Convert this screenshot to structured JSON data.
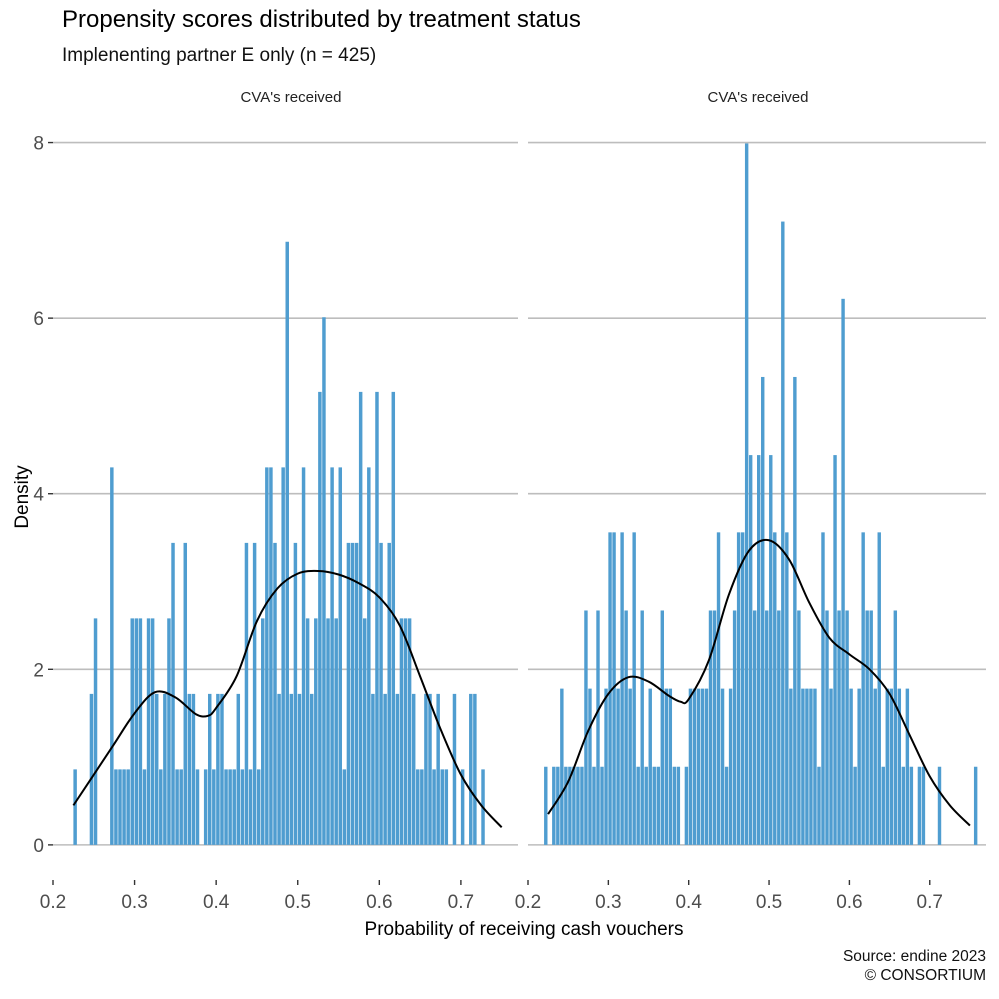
{
  "title": "Propensity scores distributed by treatment status",
  "subtitle": "Implenenting partner E only (n = 425)",
  "caption": {
    "line1": "Source: endine 2023",
    "line2": "© CONSORTIUM"
  },
  "colors": {
    "bars": "#4f9dd0",
    "density": "#000000",
    "grid": "#bdbdbd"
  },
  "chart_data": {
    "type": "bar",
    "description_units": "histogram of density vs probability, bins 0.005 wide",
    "xlabel": "Probability of receiving cash vouchers",
    "ylabel": "Density",
    "xlim": [
      0.2,
      0.77
    ],
    "ylim": [
      -0.4,
      8.2
    ],
    "x_ticks": [
      0.2,
      0.3,
      0.4,
      0.5,
      0.6,
      0.7
    ],
    "y_ticks": [
      0,
      2,
      4,
      6,
      8
    ],
    "x_tick_labels": [
      "0.2",
      "0.3",
      "0.4",
      "0.5",
      "0.6",
      "0.7"
    ],
    "y_tick_labels": [
      "0",
      "2",
      "4",
      "6",
      "8"
    ],
    "grid": "horizontal",
    "bin_width": 0.005,
    "panels": [
      {
        "strip": "CVA's received",
        "bins": [
          {
            "x": 0.2275,
            "y": 0.86
          },
          {
            "x": 0.2475,
            "y": 1.72
          },
          {
            "x": 0.2525,
            "y": 2.58
          },
          {
            "x": 0.2725,
            "y": 4.3
          },
          {
            "x": 0.2775,
            "y": 0.86
          },
          {
            "x": 0.2825,
            "y": 0.86
          },
          {
            "x": 0.2875,
            "y": 0.86
          },
          {
            "x": 0.2925,
            "y": 0.86
          },
          {
            "x": 0.2975,
            "y": 2.58
          },
          {
            "x": 0.3025,
            "y": 2.58
          },
          {
            "x": 0.3075,
            "y": 2.58
          },
          {
            "x": 0.3125,
            "y": 0.86
          },
          {
            "x": 0.3175,
            "y": 2.58
          },
          {
            "x": 0.3225,
            "y": 2.58
          },
          {
            "x": 0.3275,
            "y": 1.72
          },
          {
            "x": 0.3325,
            "y": 0.86
          },
          {
            "x": 0.3375,
            "y": 1.72
          },
          {
            "x": 0.3425,
            "y": 2.58
          },
          {
            "x": 0.3475,
            "y": 3.44
          },
          {
            "x": 0.3525,
            "y": 0.86
          },
          {
            "x": 0.3575,
            "y": 0.86
          },
          {
            "x": 0.3625,
            "y": 3.44
          },
          {
            "x": 0.3675,
            "y": 1.72
          },
          {
            "x": 0.3725,
            "y": 1.72
          },
          {
            "x": 0.3775,
            "y": 0.86
          },
          {
            "x": 0.3875,
            "y": 0.86
          },
          {
            "x": 0.3925,
            "y": 1.72
          },
          {
            "x": 0.3975,
            "y": 0.86
          },
          {
            "x": 0.4025,
            "y": 1.72
          },
          {
            "x": 0.4075,
            "y": 1.72
          },
          {
            "x": 0.4125,
            "y": 0.86
          },
          {
            "x": 0.4175,
            "y": 0.86
          },
          {
            "x": 0.4225,
            "y": 0.86
          },
          {
            "x": 0.4275,
            "y": 1.72
          },
          {
            "x": 0.4325,
            "y": 0.86
          },
          {
            "x": 0.4375,
            "y": 3.44
          },
          {
            "x": 0.4425,
            "y": 0.86
          },
          {
            "x": 0.4475,
            "y": 3.44
          },
          {
            "x": 0.4525,
            "y": 0.86
          },
          {
            "x": 0.4575,
            "y": 2.58
          },
          {
            "x": 0.4625,
            "y": 4.3
          },
          {
            "x": 0.4675,
            "y": 4.3
          },
          {
            "x": 0.4725,
            "y": 3.44
          },
          {
            "x": 0.4775,
            "y": 1.72
          },
          {
            "x": 0.4825,
            "y": 4.3
          },
          {
            "x": 0.4875,
            "y": 6.87
          },
          {
            "x": 0.4925,
            "y": 1.72
          },
          {
            "x": 0.4975,
            "y": 3.44
          },
          {
            "x": 0.5025,
            "y": 1.72
          },
          {
            "x": 0.5075,
            "y": 4.3
          },
          {
            "x": 0.5125,
            "y": 2.58
          },
          {
            "x": 0.5175,
            "y": 1.72
          },
          {
            "x": 0.5225,
            "y": 2.58
          },
          {
            "x": 0.5275,
            "y": 5.16
          },
          {
            "x": 0.5325,
            "y": 6.01
          },
          {
            "x": 0.5375,
            "y": 2.58
          },
          {
            "x": 0.5425,
            "y": 4.3
          },
          {
            "x": 0.5475,
            "y": 2.58
          },
          {
            "x": 0.5525,
            "y": 4.3
          },
          {
            "x": 0.5575,
            "y": 0.86
          },
          {
            "x": 0.5625,
            "y": 3.44
          },
          {
            "x": 0.5675,
            "y": 3.44
          },
          {
            "x": 0.5725,
            "y": 3.44
          },
          {
            "x": 0.5775,
            "y": 5.16
          },
          {
            "x": 0.5825,
            "y": 2.58
          },
          {
            "x": 0.5875,
            "y": 4.3
          },
          {
            "x": 0.5925,
            "y": 1.72
          },
          {
            "x": 0.5975,
            "y": 5.16
          },
          {
            "x": 0.6025,
            "y": 3.44
          },
          {
            "x": 0.6075,
            "y": 1.72
          },
          {
            "x": 0.6125,
            "y": 3.44
          },
          {
            "x": 0.6175,
            "y": 5.16
          },
          {
            "x": 0.6225,
            "y": 1.72
          },
          {
            "x": 0.6275,
            "y": 2.58
          },
          {
            "x": 0.6325,
            "y": 2.58
          },
          {
            "x": 0.6375,
            "y": 2.58
          },
          {
            "x": 0.6425,
            "y": 1.72
          },
          {
            "x": 0.6475,
            "y": 0.86
          },
          {
            "x": 0.6525,
            "y": 0.86
          },
          {
            "x": 0.6575,
            "y": 1.72
          },
          {
            "x": 0.6625,
            "y": 1.72
          },
          {
            "x": 0.6675,
            "y": 0.86
          },
          {
            "x": 0.6725,
            "y": 1.72
          },
          {
            "x": 0.6775,
            "y": 0.86
          },
          {
            "x": 0.6825,
            "y": 0.86
          },
          {
            "x": 0.6925,
            "y": 1.72
          },
          {
            "x": 0.7025,
            "y": 0.86
          },
          {
            "x": 0.7125,
            "y": 1.72
          },
          {
            "x": 0.7175,
            "y": 1.72
          },
          {
            "x": 0.7275,
            "y": 0.86
          }
        ],
        "density": [
          [
            0.225,
            0.45
          ],
          [
            0.25,
            0.8
          ],
          [
            0.275,
            1.15
          ],
          [
            0.3,
            1.5
          ],
          [
            0.325,
            1.74
          ],
          [
            0.35,
            1.68
          ],
          [
            0.375,
            1.49
          ],
          [
            0.39,
            1.47
          ],
          [
            0.4,
            1.56
          ],
          [
            0.425,
            1.92
          ],
          [
            0.45,
            2.55
          ],
          [
            0.475,
            2.92
          ],
          [
            0.5,
            3.09
          ],
          [
            0.525,
            3.12
          ],
          [
            0.55,
            3.08
          ],
          [
            0.575,
            2.98
          ],
          [
            0.6,
            2.82
          ],
          [
            0.625,
            2.5
          ],
          [
            0.65,
            1.92
          ],
          [
            0.675,
            1.32
          ],
          [
            0.7,
            0.8
          ],
          [
            0.725,
            0.45
          ],
          [
            0.75,
            0.2
          ]
        ]
      },
      {
        "strip": "CVA's received",
        "bins": [
          {
            "x": 0.2225,
            "y": 0.89
          },
          {
            "x": 0.2325,
            "y": 0.89
          },
          {
            "x": 0.2375,
            "y": 0.89
          },
          {
            "x": 0.2425,
            "y": 1.78
          },
          {
            "x": 0.2475,
            "y": 0.89
          },
          {
            "x": 0.2525,
            "y": 0.89
          },
          {
            "x": 0.2575,
            "y": 0.89
          },
          {
            "x": 0.2625,
            "y": 0.89
          },
          {
            "x": 0.2675,
            "y": 0.89
          },
          {
            "x": 0.2725,
            "y": 2.67
          },
          {
            "x": 0.2775,
            "y": 1.78
          },
          {
            "x": 0.2825,
            "y": 0.89
          },
          {
            "x": 0.2875,
            "y": 2.67
          },
          {
            "x": 0.2925,
            "y": 0.89
          },
          {
            "x": 0.2975,
            "y": 1.78
          },
          {
            "x": 0.3025,
            "y": 3.56
          },
          {
            "x": 0.3075,
            "y": 3.56
          },
          {
            "x": 0.3125,
            "y": 1.78
          },
          {
            "x": 0.3175,
            "y": 3.56
          },
          {
            "x": 0.3225,
            "y": 2.67
          },
          {
            "x": 0.3275,
            "y": 1.78
          },
          {
            "x": 0.3325,
            "y": 3.56
          },
          {
            "x": 0.3375,
            "y": 0.89
          },
          {
            "x": 0.3425,
            "y": 2.67
          },
          {
            "x": 0.3475,
            "y": 0.89
          },
          {
            "x": 0.3525,
            "y": 1.78
          },
          {
            "x": 0.3575,
            "y": 0.89
          },
          {
            "x": 0.3625,
            "y": 0.89
          },
          {
            "x": 0.3675,
            "y": 2.67
          },
          {
            "x": 0.3725,
            "y": 1.78
          },
          {
            "x": 0.3775,
            "y": 1.78
          },
          {
            "x": 0.3825,
            "y": 0.89
          },
          {
            "x": 0.3875,
            "y": 0.89
          },
          {
            "x": 0.3975,
            "y": 0.89
          },
          {
            "x": 0.4025,
            "y": 1.78
          },
          {
            "x": 0.4075,
            "y": 1.78
          },
          {
            "x": 0.4125,
            "y": 1.78
          },
          {
            "x": 0.4175,
            "y": 1.78
          },
          {
            "x": 0.4225,
            "y": 1.78
          },
          {
            "x": 0.4275,
            "y": 2.67
          },
          {
            "x": 0.4325,
            "y": 2.67
          },
          {
            "x": 0.4375,
            "y": 3.56
          },
          {
            "x": 0.4425,
            "y": 1.78
          },
          {
            "x": 0.4475,
            "y": 0.89
          },
          {
            "x": 0.4525,
            "y": 1.78
          },
          {
            "x": 0.4575,
            "y": 2.67
          },
          {
            "x": 0.4625,
            "y": 3.56
          },
          {
            "x": 0.4675,
            "y": 3.56
          },
          {
            "x": 0.4725,
            "y": 7.99
          },
          {
            "x": 0.4775,
            "y": 4.44
          },
          {
            "x": 0.4825,
            "y": 2.67
          },
          {
            "x": 0.4875,
            "y": 4.44
          },
          {
            "x": 0.4925,
            "y": 5.33
          },
          {
            "x": 0.4975,
            "y": 2.67
          },
          {
            "x": 0.5025,
            "y": 4.44
          },
          {
            "x": 0.5075,
            "y": 3.56
          },
          {
            "x": 0.5125,
            "y": 2.67
          },
          {
            "x": 0.5175,
            "y": 7.1
          },
          {
            "x": 0.5225,
            "y": 3.56
          },
          {
            "x": 0.5275,
            "y": 1.78
          },
          {
            "x": 0.5325,
            "y": 5.33
          },
          {
            "x": 0.5375,
            "y": 2.67
          },
          {
            "x": 0.5425,
            "y": 1.78
          },
          {
            "x": 0.5475,
            "y": 1.78
          },
          {
            "x": 0.5525,
            "y": 1.78
          },
          {
            "x": 0.5575,
            "y": 1.78
          },
          {
            "x": 0.5625,
            "y": 0.89
          },
          {
            "x": 0.5675,
            "y": 3.56
          },
          {
            "x": 0.5725,
            "y": 2.67
          },
          {
            "x": 0.5775,
            "y": 1.78
          },
          {
            "x": 0.5825,
            "y": 4.44
          },
          {
            "x": 0.5875,
            "y": 2.67
          },
          {
            "x": 0.5925,
            "y": 6.22
          },
          {
            "x": 0.5975,
            "y": 2.67
          },
          {
            "x": 0.6025,
            "y": 1.78
          },
          {
            "x": 0.6075,
            "y": 0.89
          },
          {
            "x": 0.6125,
            "y": 1.78
          },
          {
            "x": 0.6175,
            "y": 3.56
          },
          {
            "x": 0.6225,
            "y": 2.67
          },
          {
            "x": 0.6275,
            "y": 2.67
          },
          {
            "x": 0.6325,
            "y": 1.78
          },
          {
            "x": 0.6375,
            "y": 3.56
          },
          {
            "x": 0.6425,
            "y": 0.89
          },
          {
            "x": 0.6475,
            "y": 1.78
          },
          {
            "x": 0.6525,
            "y": 1.78
          },
          {
            "x": 0.6575,
            "y": 2.67
          },
          {
            "x": 0.6625,
            "y": 1.78
          },
          {
            "x": 0.6675,
            "y": 0.89
          },
          {
            "x": 0.6725,
            "y": 1.78
          },
          {
            "x": 0.6775,
            "y": 0.89
          },
          {
            "x": 0.6875,
            "y": 0.89
          },
          {
            "x": 0.6925,
            "y": 0.89
          },
          {
            "x": 0.7125,
            "y": 0.89
          },
          {
            "x": 0.7575,
            "y": 0.89
          }
        ],
        "density": [
          [
            0.225,
            0.35
          ],
          [
            0.25,
            0.72
          ],
          [
            0.275,
            1.3
          ],
          [
            0.3,
            1.72
          ],
          [
            0.325,
            1.91
          ],
          [
            0.35,
            1.86
          ],
          [
            0.375,
            1.7
          ],
          [
            0.39,
            1.63
          ],
          [
            0.4,
            1.66
          ],
          [
            0.425,
            2.1
          ],
          [
            0.45,
            2.85
          ],
          [
            0.475,
            3.35
          ],
          [
            0.5,
            3.47
          ],
          [
            0.525,
            3.25
          ],
          [
            0.55,
            2.76
          ],
          [
            0.575,
            2.36
          ],
          [
            0.6,
            2.17
          ],
          [
            0.625,
            2.0
          ],
          [
            0.65,
            1.72
          ],
          [
            0.675,
            1.25
          ],
          [
            0.7,
            0.78
          ],
          [
            0.725,
            0.45
          ],
          [
            0.75,
            0.22
          ]
        ]
      }
    ]
  }
}
